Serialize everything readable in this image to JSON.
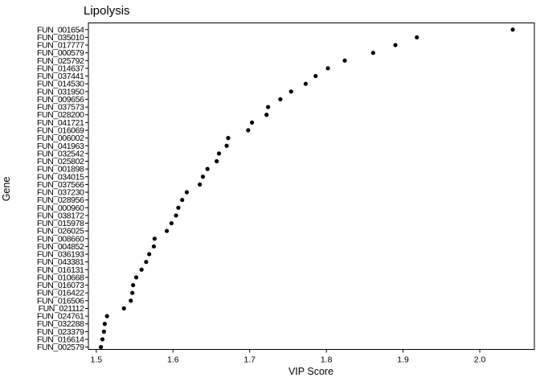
{
  "chart_data": {
    "type": "scatter",
    "title": "Lipolysis",
    "xlabel": "VIP Score",
    "ylabel": "Gene",
    "xlim": [
      1.4897,
      2.0712
    ],
    "x_ticks": [
      1.5,
      1.6,
      1.7,
      1.8,
      1.9,
      2.0
    ],
    "x_tick_labels": [
      "1.5",
      "1.6",
      "1.7",
      "1.8",
      "1.9",
      "2.0"
    ],
    "grid": false,
    "legend": "none",
    "point_color": "#000000",
    "panel_border_color": "#000000",
    "background_color": "#ffffff",
    "categories": [
      "FUN_001654",
      "FUN_035010",
      "FUN_017777",
      "FUN_000579",
      "FUN_025792",
      "FUN_014637",
      "FUN_037441",
      "FUN_014530",
      "FUN_031950",
      "FUN_009656",
      "FUN_037573",
      "FUN_028200",
      "FUN_041721",
      "FUN_016069",
      "FUN_006002",
      "FUN_041963",
      "FUN_032542",
      "FUN_025802",
      "FUN_001898",
      "FUN_034015",
      "FUN_037566",
      "FUN_037230",
      "FUN_028956",
      "FUN_000960",
      "FUN_038172",
      "FUN_015978",
      "FUN_026025",
      "FUN_008660",
      "FUN_004852",
      "FUN_036193",
      "FUN_043381",
      "FUN_016131",
      "FUN_010668",
      "FUN_016073",
      "FUN_016422",
      "FUN_016506",
      "FUN_021112",
      "FUN_024761",
      "FUN_032288",
      "FUN_023379",
      "FUN_016614",
      "FUN_002579"
    ],
    "values": [
      2.043,
      1.918,
      1.89,
      1.861,
      1.824,
      1.802,
      1.786,
      1.773,
      1.754,
      1.74,
      1.724,
      1.722,
      1.703,
      1.698,
      1.672,
      1.67,
      1.66,
      1.657,
      1.645,
      1.639,
      1.635,
      1.618,
      1.612,
      1.607,
      1.604,
      1.598,
      1.592,
      1.576,
      1.575,
      1.569,
      1.565,
      1.559,
      1.552,
      1.548,
      1.547,
      1.545,
      1.536,
      1.514,
      1.511,
      1.51,
      1.508,
      1.506
    ]
  }
}
